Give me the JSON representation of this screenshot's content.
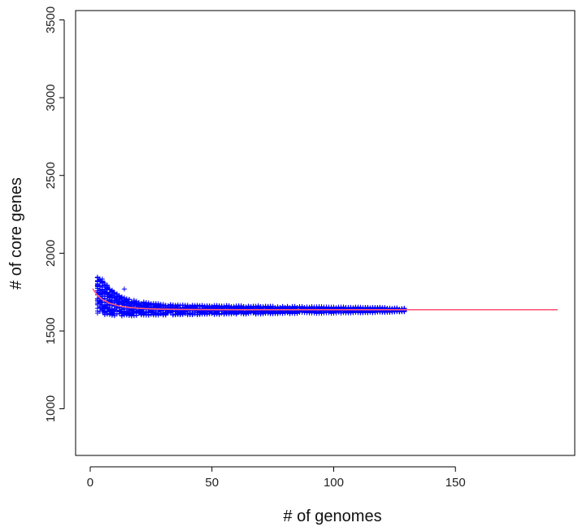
{
  "chart_data": {
    "type": "scatter",
    "title": "",
    "xlabel": "# of genomes",
    "ylabel": "# of core genes",
    "xlim": [
      -6,
      199
    ],
    "ylim": [
      700,
      3560
    ],
    "x_ticks": [
      0,
      50,
      100,
      150
    ],
    "y_ticks": [
      1000,
      1500,
      2000,
      2500,
      3000,
      3500
    ],
    "grid": false,
    "legend": "none",
    "series": [
      {
        "kind": "points",
        "marker": "+",
        "color": "#0000ff",
        "spread": [
          {
            "x": 3,
            "min": 1615,
            "max": 1865
          },
          {
            "x": 5,
            "min": 1608,
            "max": 1835
          },
          {
            "x": 7,
            "min": 1602,
            "max": 1795
          },
          {
            "x": 10,
            "min": 1598,
            "max": 1748
          },
          {
            "x": 15,
            "min": 1596,
            "max": 1712
          },
          {
            "x": 20,
            "min": 1598,
            "max": 1690
          },
          {
            "x": 30,
            "min": 1602,
            "max": 1672
          },
          {
            "x": 50,
            "min": 1606,
            "max": 1665
          },
          {
            "x": 75,
            "min": 1610,
            "max": 1660
          },
          {
            "x": 100,
            "min": 1614,
            "max": 1656
          },
          {
            "x": 120,
            "min": 1618,
            "max": 1652
          },
          {
            "x": 129,
            "min": 1624,
            "max": 1646
          }
        ],
        "outliers": [
          {
            "x": 14,
            "y": 1770
          },
          {
            "x": 8,
            "y": 1700
          },
          {
            "x": 11,
            "y": 1708
          }
        ]
      },
      {
        "kind": "fit",
        "color": "#ff5a7a",
        "x": [
          1,
          3,
          5,
          8,
          12,
          16,
          20,
          25,
          30,
          40,
          60,
          80,
          100,
          129,
          150,
          192
        ],
        "y": [
          1772,
          1728,
          1702,
          1678,
          1660,
          1651,
          1646,
          1642,
          1640,
          1638,
          1637,
          1637,
          1637,
          1637,
          1637,
          1637
        ]
      }
    ]
  }
}
